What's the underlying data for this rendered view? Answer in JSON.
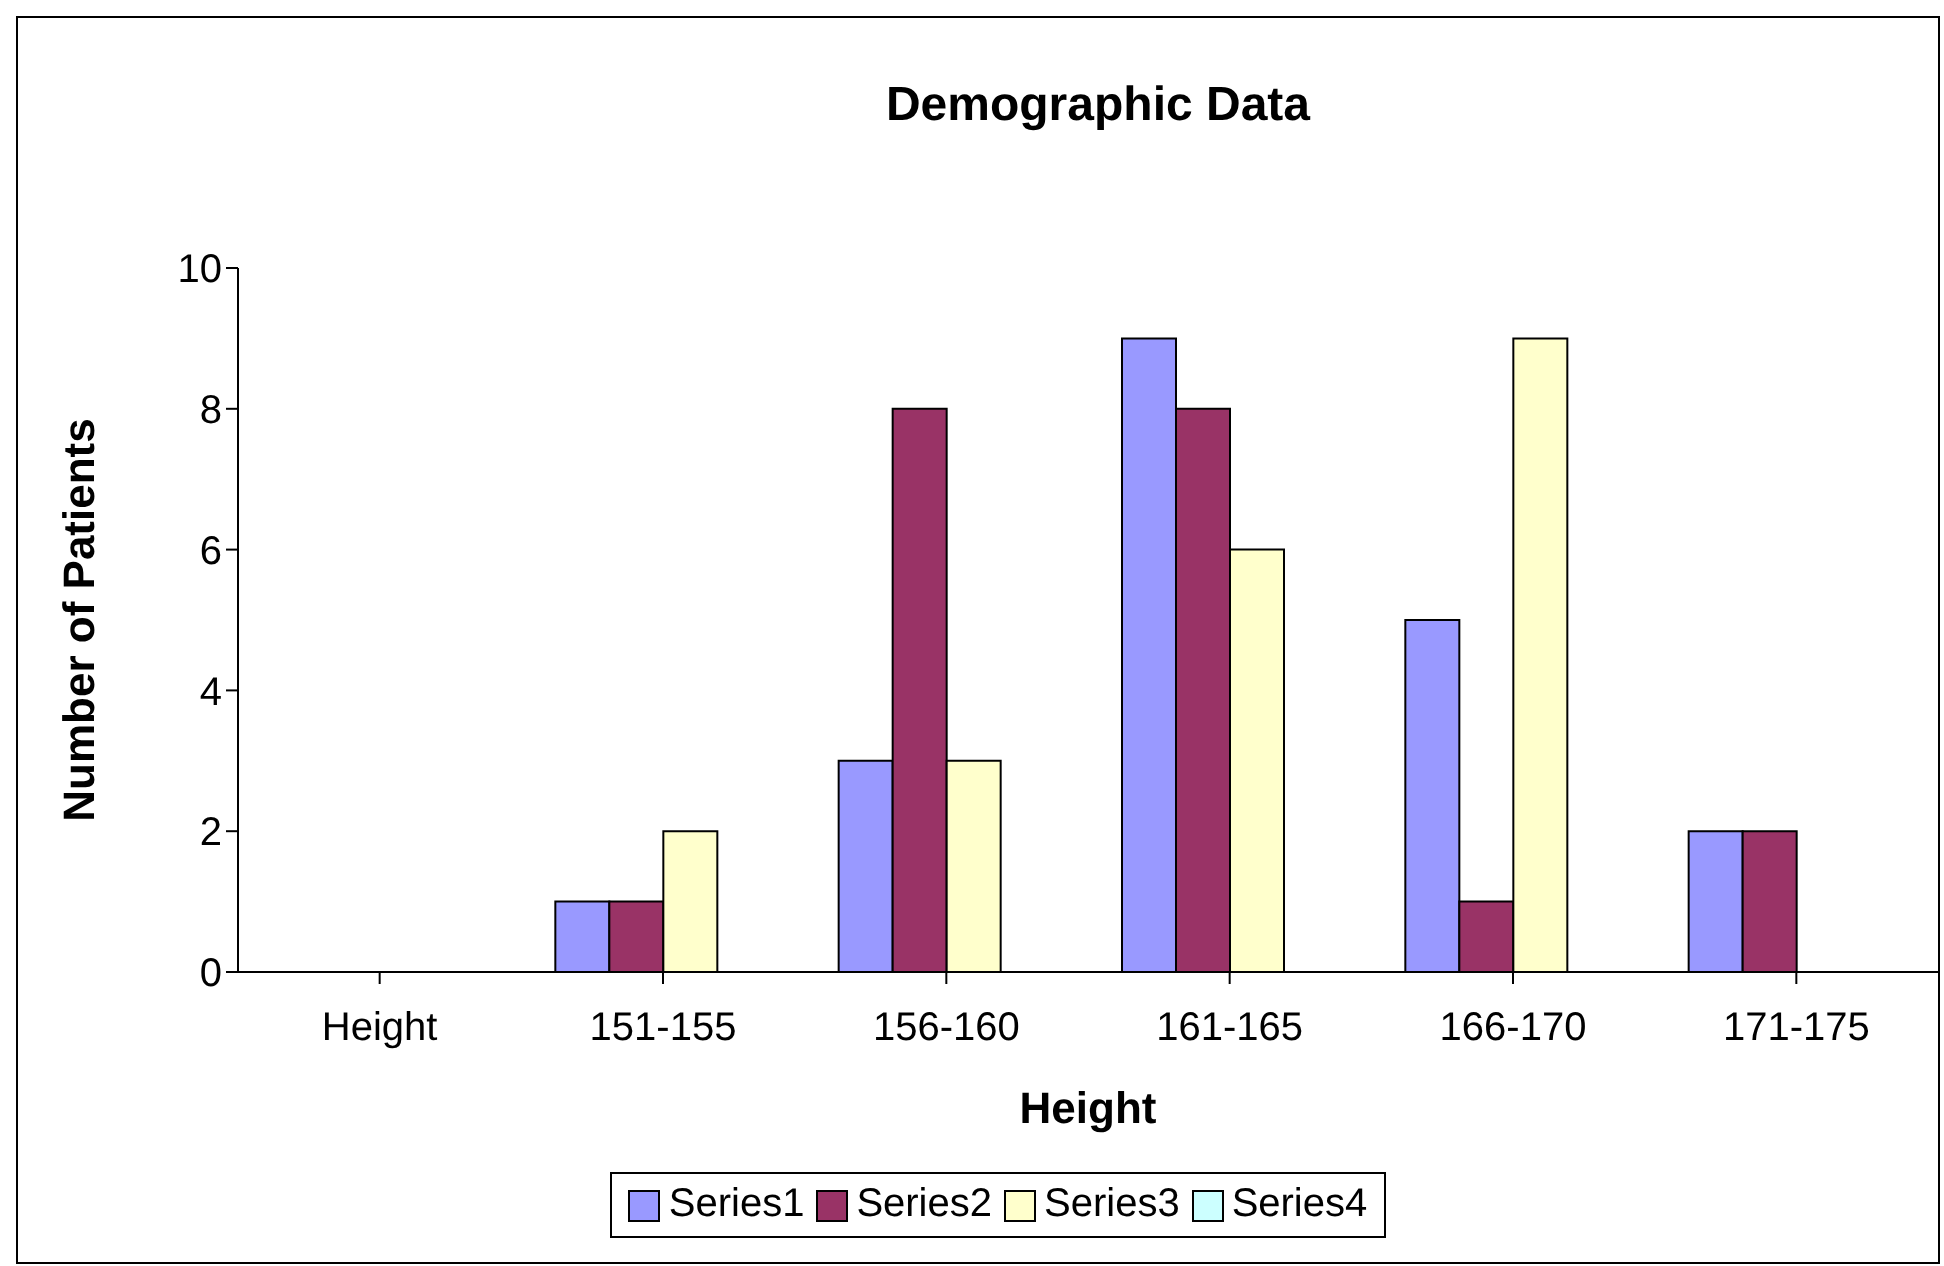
{
  "chart_data": {
    "type": "bar",
    "title": "Demographic Data",
    "xlabel": "Height",
    "ylabel": "Number of Patients",
    "categories": [
      "Height",
      "151-155",
      "156-160",
      "161-165",
      "166-170",
      "171-175"
    ],
    "series": [
      {
        "name": "Series1",
        "color": "#9999ff",
        "values": [
          null,
          1,
          3,
          9,
          5,
          2
        ]
      },
      {
        "name": "Series2",
        "color": "#993366",
        "values": [
          null,
          1,
          8,
          8,
          1,
          2
        ]
      },
      {
        "name": "Series3",
        "color": "#ffffcc",
        "values": [
          null,
          2,
          3,
          6,
          9,
          null
        ]
      },
      {
        "name": "Series4",
        "color": "#ccffff",
        "values": [
          null,
          null,
          null,
          null,
          null,
          null
        ]
      }
    ],
    "ylim": [
      0,
      10
    ],
    "yticks": [
      0,
      2,
      4,
      6,
      8,
      10
    ],
    "grid": false,
    "legend": "bottom"
  }
}
